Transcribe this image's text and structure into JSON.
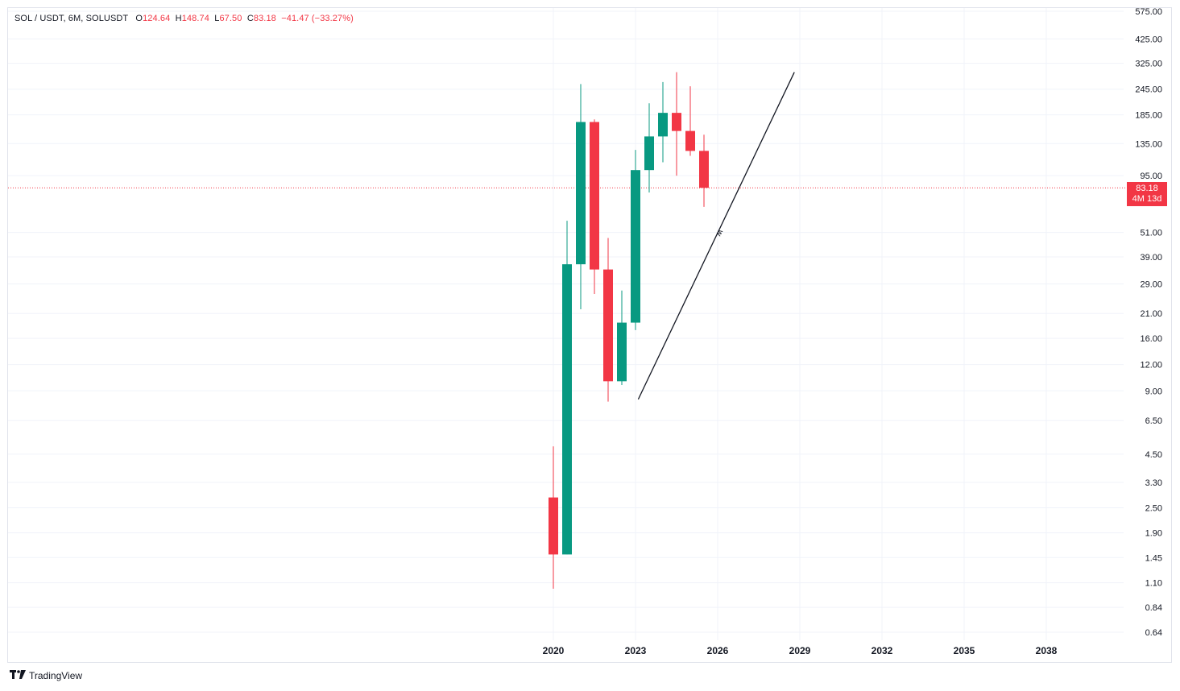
{
  "legend": {
    "symbol": "SOL / USDT, 6M, SOLUSDT",
    "o_label": "O",
    "o_value": "124.64",
    "h_label": "H",
    "h_value": "148.74",
    "l_label": "L",
    "l_value": "67.50",
    "c_label": "C",
    "c_value": "83.18",
    "change": "−41.47 (−33.27%)"
  },
  "price_badge": {
    "price": "83.18",
    "countdown": "4M 13d"
  },
  "brand": {
    "icon": "tv-logo-icon",
    "name": "TradingView"
  },
  "colors": {
    "up": "#089981",
    "down": "#f23645",
    "grid": "#f0f3fa",
    "text": "#131722"
  },
  "chart_data": {
    "type": "candlestick",
    "y_scale": "log",
    "y_ticks": [
      "575.00",
      "425.00",
      "325.00",
      "245.00",
      "185.00",
      "135.00",
      "95.00",
      "51.00",
      "39.00",
      "29.00",
      "21.00",
      "16.00",
      "12.00",
      "9.00",
      "6.50",
      "4.50",
      "3.30",
      "2.50",
      "1.90",
      "1.45",
      "1.10",
      "0.84",
      "0.64"
    ],
    "x_ticks": [
      "2020",
      "2023",
      "2026",
      "2029",
      "2032",
      "2035",
      "2038"
    ],
    "x_tick_years": [
      2020,
      2023,
      2026,
      2029,
      2032,
      2035,
      2038
    ],
    "current_price": 83.18,
    "candles": [
      {
        "t": 2020.0,
        "o": 2.8,
        "h": 4.9,
        "l": 1.03,
        "c": 1.5
      },
      {
        "t": 2020.5,
        "o": 1.5,
        "h": 58.0,
        "l": 1.5,
        "c": 36.0
      },
      {
        "t": 2021.0,
        "o": 36.0,
        "h": 259.0,
        "l": 22.0,
        "c": 171.0
      },
      {
        "t": 2021.5,
        "o": 171.0,
        "h": 176.0,
        "l": 26.0,
        "c": 34.0
      },
      {
        "t": 2022.0,
        "o": 34.0,
        "h": 48.0,
        "l": 8.0,
        "c": 10.0
      },
      {
        "t": 2022.5,
        "o": 10.0,
        "h": 27.0,
        "l": 9.6,
        "c": 19.0
      },
      {
        "t": 2023.0,
        "o": 19.0,
        "h": 126.0,
        "l": 17.5,
        "c": 101.0
      },
      {
        "t": 2023.5,
        "o": 101.0,
        "h": 210.0,
        "l": 79.0,
        "c": 146.0
      },
      {
        "t": 2024.0,
        "o": 146.0,
        "h": 265.0,
        "l": 110.0,
        "c": 189.0
      },
      {
        "t": 2024.5,
        "o": 189.0,
        "h": 295.0,
        "l": 95.0,
        "c": 155.0
      },
      {
        "t": 2025.0,
        "o": 155.0,
        "h": 253.0,
        "l": 118.0,
        "c": 124.6
      },
      {
        "t": 2025.5,
        "o": 124.64,
        "h": 148.74,
        "l": 67.5,
        "c": 83.18
      }
    ],
    "trendline": {
      "start": {
        "t": 2023.1,
        "price": 8.2
      },
      "end": {
        "t": 2028.8,
        "price": 295.0
      }
    },
    "annotation": "ʍ"
  }
}
